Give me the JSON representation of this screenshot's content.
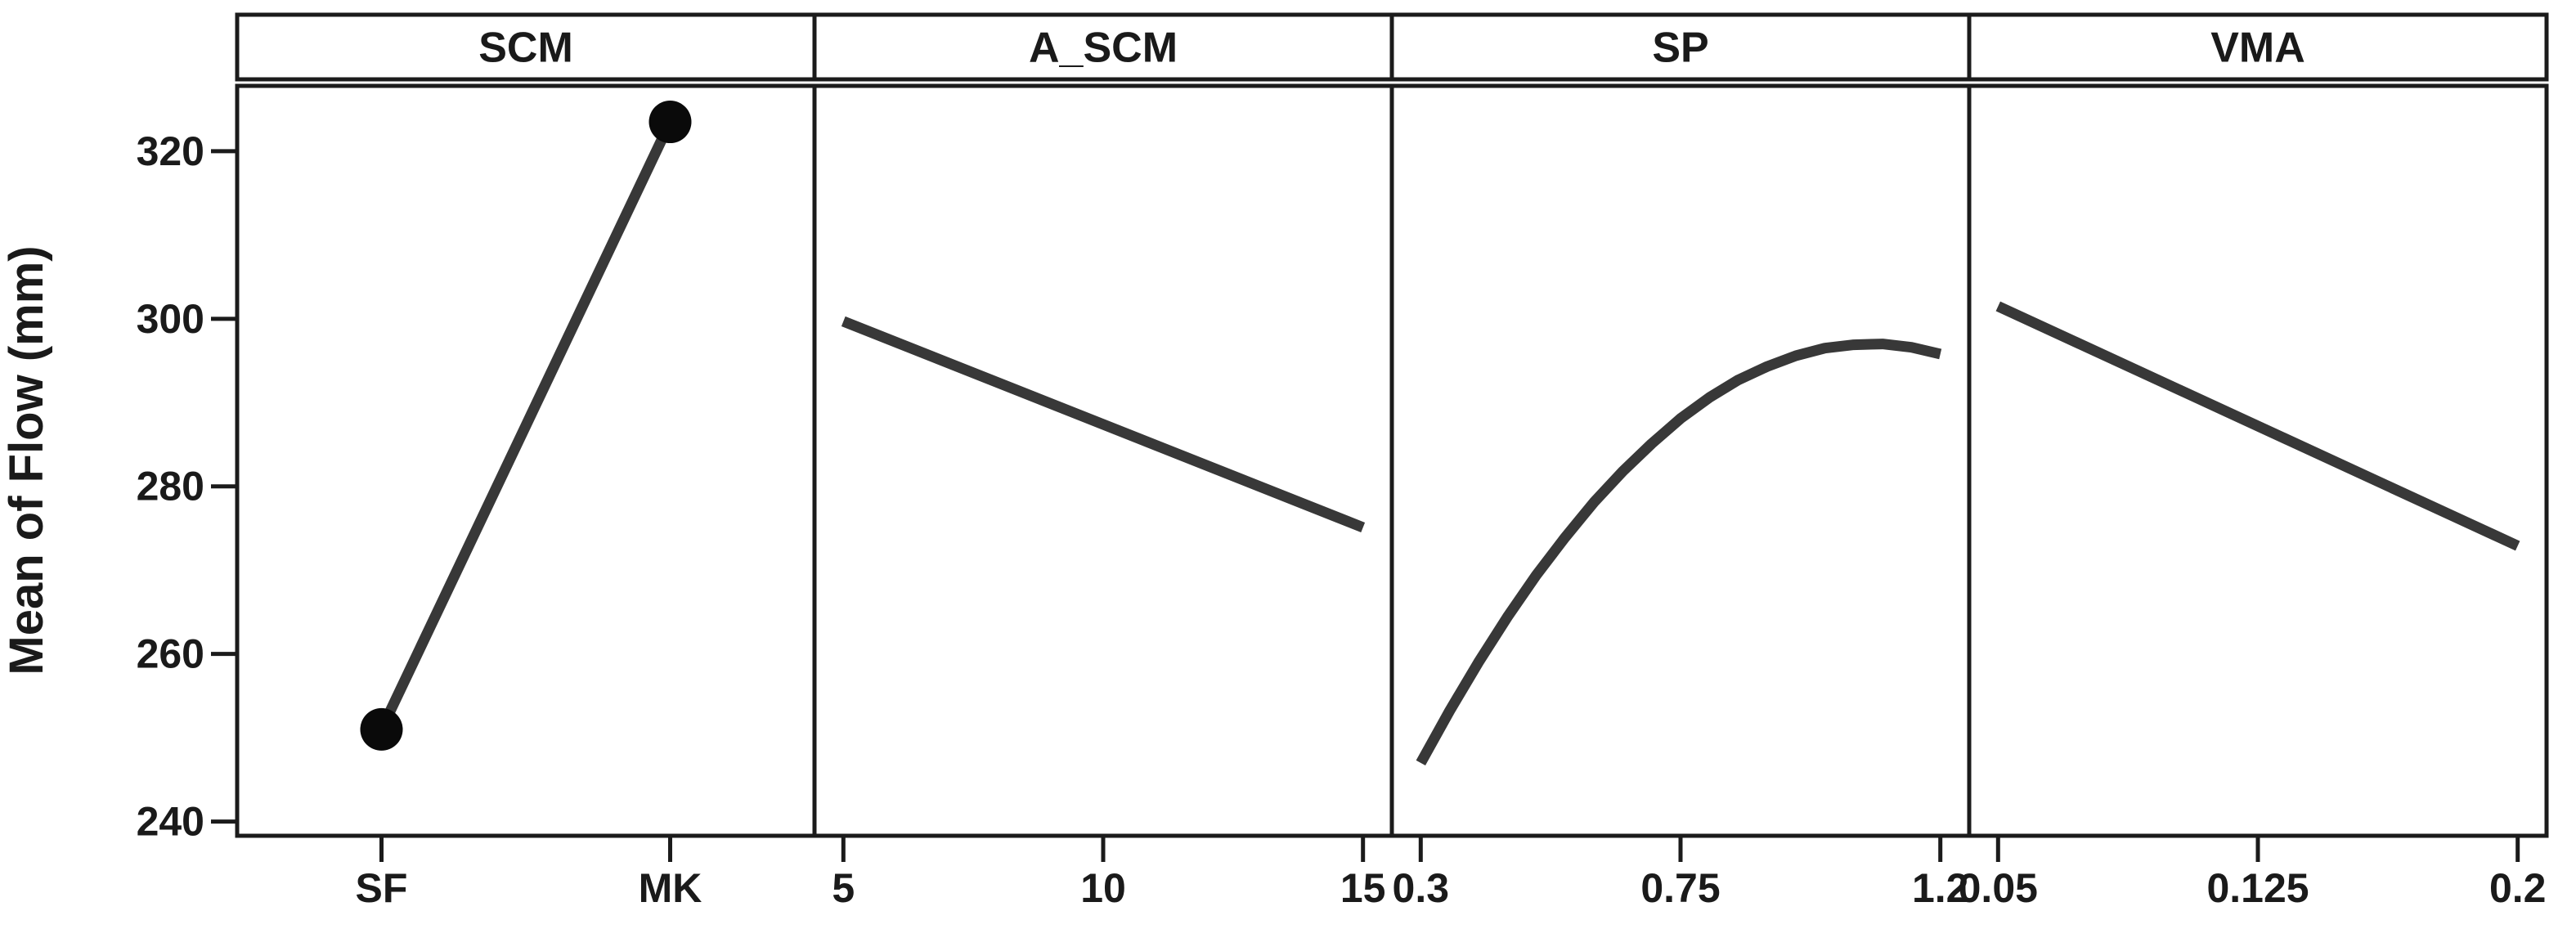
{
  "chart_data": {
    "type": "line",
    "description": "Main effects panel plot with four factor panels sharing one y axis",
    "ylabel": "Mean of Flow (mm)",
    "y_tick_labels": [
      "240",
      "260",
      "280",
      "300",
      "320"
    ],
    "y_tick_values": [
      240,
      260,
      280,
      300,
      320
    ],
    "y_range": [
      238.3,
      327.8
    ],
    "grid": false,
    "legend": false,
    "colors": {
      "line": "#383838",
      "marker": "#0a0a0a",
      "frame": "#1b1b1b",
      "text": "#1a1a1a",
      "background": "#ffffff"
    },
    "panels": [
      {
        "title": "SCM",
        "x_type": "categorical",
        "x_tick_labels": [
          "SF",
          "MK"
        ],
        "levels": [
          "SF",
          "MK"
        ],
        "values": [
          251,
          323.5
        ],
        "markers": true
      },
      {
        "title": "A_SCM",
        "x_type": "continuous",
        "x_tick_values": [
          5,
          10,
          15
        ],
        "x_tick_labels": [
          "5",
          "10",
          "15"
        ],
        "points": [
          [
            5,
            299.7
          ],
          [
            15,
            275.1
          ]
        ],
        "markers": false
      },
      {
        "title": "SP",
        "x_type": "continuous",
        "x_tick_values": [
          0.3,
          0.75,
          1.2
        ],
        "x_tick_labels": [
          "0.3",
          "0.75",
          "1.2"
        ],
        "points": [
          [
            0.3,
            247.0
          ],
          [
            0.35,
            253.2
          ],
          [
            0.4,
            259.0
          ],
          [
            0.45,
            264.4
          ],
          [
            0.5,
            269.4
          ],
          [
            0.55,
            273.9
          ],
          [
            0.6,
            278.1
          ],
          [
            0.65,
            281.8
          ],
          [
            0.7,
            285.1
          ],
          [
            0.75,
            288.1
          ],
          [
            0.8,
            290.6
          ],
          [
            0.85,
            292.7
          ],
          [
            0.9,
            294.3
          ],
          [
            0.95,
            295.6
          ],
          [
            1.0,
            296.5
          ],
          [
            1.05,
            296.9
          ],
          [
            1.1,
            297.0
          ],
          [
            1.15,
            296.6
          ],
          [
            1.2,
            295.8
          ]
        ],
        "markers": false
      },
      {
        "title": "VMA",
        "x_type": "continuous",
        "x_tick_values": [
          0.05,
          0.125,
          0.2
        ],
        "x_tick_labels": [
          "0.05",
          "0.125",
          "0.2"
        ],
        "points": [
          [
            0.05,
            301.5
          ],
          [
            0.2,
            272.9
          ]
        ],
        "markers": false
      }
    ]
  }
}
